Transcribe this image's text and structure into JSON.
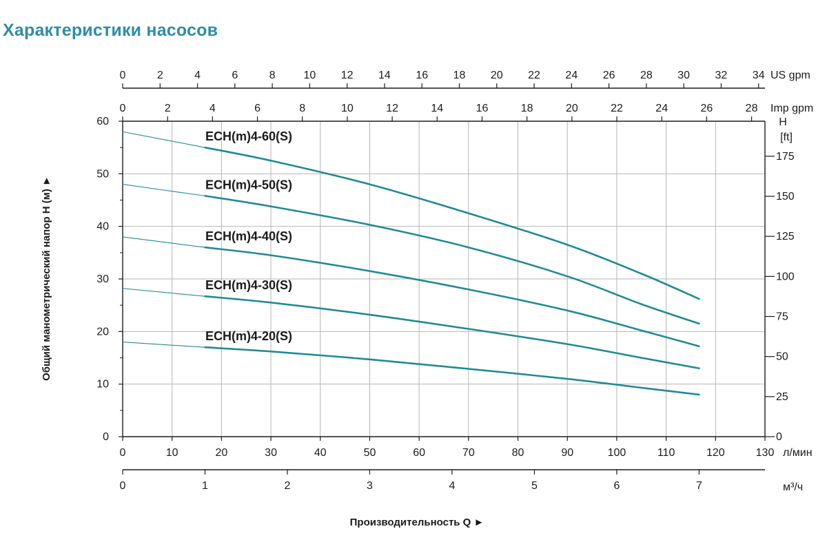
{
  "page_title": "Характеристики насосов",
  "colors": {
    "title": "#2d8da8",
    "curve": "#1f8a96",
    "grid": "#b4b4b4",
    "axis": "#1a1a1a"
  },
  "chart_data": {
    "type": "line",
    "title": "Характеристики насосов",
    "xlabel": "Производительность Q ►",
    "ylabel": "Общий манометрический напор H (м) ►",
    "xlim": [
      0,
      130
    ],
    "ylim": [
      0,
      60
    ],
    "x_unit": "л/мин",
    "y_right_label": "H [ft]",
    "axes": {
      "bottom_lmin": {
        "unit": "л/мин",
        "ticks": [
          0,
          10,
          20,
          30,
          40,
          50,
          60,
          70,
          80,
          90,
          100,
          110,
          120,
          130
        ]
      },
      "bottom_m3h": {
        "unit": "м³/ч",
        "ticks": [
          0,
          1,
          2,
          3,
          4,
          5,
          6,
          7
        ]
      },
      "top_usgpm": {
        "unit": "US gpm",
        "ticks": [
          0,
          2,
          4,
          6,
          8,
          10,
          12,
          14,
          16,
          18,
          20,
          22,
          24,
          26,
          28,
          30,
          32,
          34
        ]
      },
      "top_impgpm": {
        "unit": "Imp gpm",
        "ticks": [
          0,
          2,
          4,
          6,
          8,
          10,
          12,
          14,
          16,
          18,
          20,
          22,
          24,
          26,
          28
        ]
      },
      "left_m": {
        "unit": "м",
        "ticks": [
          0,
          10,
          20,
          30,
          40,
          50,
          60
        ]
      },
      "right_ft": {
        "title_line1": "H",
        "title_line2": "[ft]",
        "ticks": [
          0,
          25,
          50,
          75,
          100,
          125,
          150,
          175
        ]
      }
    },
    "x": [
      0,
      16.67,
      30,
      50,
      70,
      90,
      105,
      116.67
    ],
    "series": [
      {
        "name": "ECH(m)4-60(S)",
        "values": [
          58,
          55,
          52.5,
          48,
          42.5,
          36.5,
          31,
          26.2
        ]
      },
      {
        "name": "ECH(m)4-50(S)",
        "values": [
          48,
          45.8,
          43.8,
          40.3,
          36,
          30.5,
          25.2,
          21.5
        ]
      },
      {
        "name": "ECH(m)4-40(S)",
        "values": [
          38,
          36,
          34.5,
          31.5,
          28,
          24,
          20.2,
          17.2
        ]
      },
      {
        "name": "ECH(m)4-30(S)",
        "values": [
          28.2,
          26.7,
          25.5,
          23.2,
          20.5,
          17.6,
          15,
          13
        ]
      },
      {
        "name": "ECH(m)4-20(S)",
        "values": [
          18,
          17,
          16.2,
          14.7,
          12.9,
          11,
          9.3,
          8
        ]
      }
    ],
    "grid": true
  }
}
